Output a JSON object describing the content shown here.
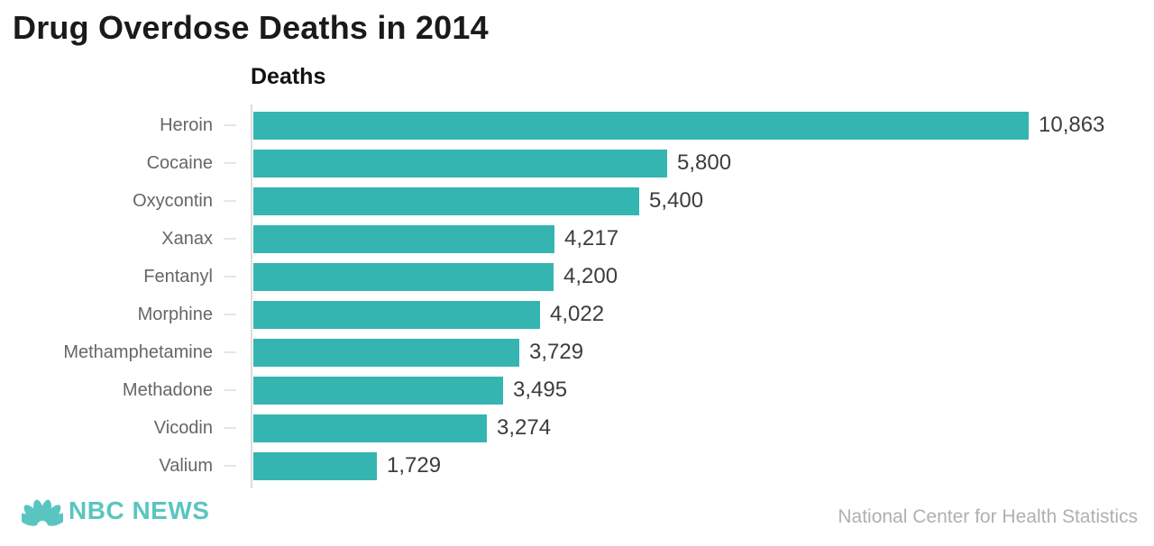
{
  "title": "Drug Overdose Deaths in 2014",
  "chart_data": {
    "type": "bar",
    "orientation": "horizontal",
    "title": "Drug Overdose Deaths in 2014",
    "axis_label": "Deaths",
    "categories": [
      "Heroin",
      "Cocaine",
      "Oxycontin",
      "Xanax",
      "Fentanyl",
      "Morphine",
      "Methamphetamine",
      "Methadone",
      "Vicodin",
      "Valium"
    ],
    "values": [
      10863,
      5800,
      5400,
      4217,
      4200,
      4022,
      3729,
      3495,
      3274,
      1729
    ],
    "value_labels": [
      "10,863",
      "5,800",
      "5,400",
      "4,217",
      "4,200",
      "4,022",
      "3,729",
      "3,495",
      "3,274",
      "1,729"
    ],
    "xlim": [
      0,
      10863
    ],
    "grid": false,
    "legend": "none",
    "value_label_position": "end-of-bar",
    "bar_color": "#35b5b1"
  },
  "footer": {
    "brand": "NBC NEWS",
    "source": "National Center for Health Statistics"
  },
  "colors": {
    "bar": "#35b5b1",
    "brand": "#5ac5c0",
    "title_text": "#1a1a1a",
    "category_label": "#666666",
    "value_label": "#3d3d3d",
    "axis_line": "#dcdcdc",
    "source_text": "#b0b0b0"
  }
}
